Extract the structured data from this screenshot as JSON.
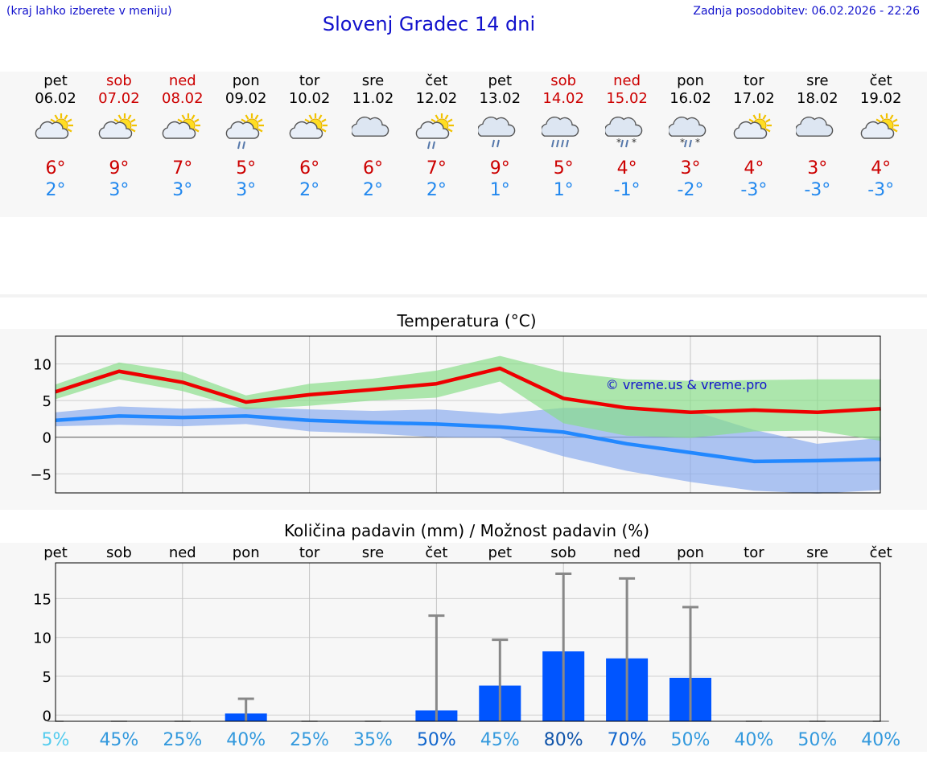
{
  "header": {
    "note": "(kraj lahko izberete v meniju)",
    "title": "Slovenj Gradec 14 dni",
    "updated": "Zadnja posodobitev: 06.02.2026 - 22:26"
  },
  "forecast": [
    {
      "day": "pet",
      "date": "06.02",
      "icon": "sun-cloud-icon",
      "max": "6°",
      "min": "2°",
      "weekend": false
    },
    {
      "day": "sob",
      "date": "07.02",
      "icon": "sun-cloud-icon",
      "max": "9°",
      "min": "3°",
      "weekend": true
    },
    {
      "day": "ned",
      "date": "08.02",
      "icon": "sun-cloud-icon",
      "max": "7°",
      "min": "3°",
      "weekend": true
    },
    {
      "day": "pon",
      "date": "09.02",
      "icon": "sun-cloud-rain-icon",
      "max": "5°",
      "min": "3°",
      "weekend": false
    },
    {
      "day": "tor",
      "date": "10.02",
      "icon": "sun-cloud-icon",
      "max": "6°",
      "min": "2°",
      "weekend": false
    },
    {
      "day": "sre",
      "date": "11.02",
      "icon": "cloud-icon",
      "max": "6°",
      "min": "2°",
      "weekend": false
    },
    {
      "day": "čet",
      "date": "12.02",
      "icon": "sun-cloud-rain-icon",
      "max": "7°",
      "min": "2°",
      "weekend": false
    },
    {
      "day": "pet",
      "date": "13.02",
      "icon": "cloud-rain-icon",
      "max": "9°",
      "min": "1°",
      "weekend": false
    },
    {
      "day": "sob",
      "date": "14.02",
      "icon": "cloud-heavy-rain-icon",
      "max": "5°",
      "min": "1°",
      "weekend": true
    },
    {
      "day": "ned",
      "date": "15.02",
      "icon": "cloud-sleet-icon",
      "max": "4°",
      "min": "-1°",
      "weekend": true
    },
    {
      "day": "pon",
      "date": "16.02",
      "icon": "cloud-sleet-icon",
      "max": "3°",
      "min": "-2°",
      "weekend": false
    },
    {
      "day": "tor",
      "date": "17.02",
      "icon": "sun-cloud-icon",
      "max": "4°",
      "min": "-3°",
      "weekend": false
    },
    {
      "day": "sre",
      "date": "18.02",
      "icon": "cloud-icon",
      "max": "3°",
      "min": "-3°",
      "weekend": false
    },
    {
      "day": "čet",
      "date": "19.02",
      "icon": "sun-cloud-icon",
      "max": "4°",
      "min": "-3°",
      "weekend": false
    }
  ],
  "colors": {
    "max_line": "#ee0000",
    "max_band": "#88dd88",
    "min_line": "#2288ff",
    "min_band": "#88aaee",
    "bar": "#0055ff",
    "whisker": "#888888",
    "title": "#1111cc"
  },
  "chart_data": [
    {
      "type": "line",
      "title": "Temperatura (°C)",
      "x": [
        "06.02",
        "07.02",
        "08.02",
        "09.02",
        "10.02",
        "11.02",
        "12.02",
        "13.02",
        "14.02",
        "15.02",
        "16.02",
        "17.02",
        "18.02",
        "19.02"
      ],
      "yticks": [
        10,
        5,
        0,
        -5
      ],
      "ytick_labels": [
        "10",
        "5",
        "0",
        "−5"
      ],
      "ylim": [
        -7.6,
        13.8
      ],
      "watermark": "© vreme.us & vreme.pro",
      "series": [
        {
          "name": "max",
          "values": [
            6.2,
            9.0,
            7.5,
            4.8,
            5.8,
            6.5,
            7.3,
            9.4,
            5.3,
            4.0,
            3.4,
            3.7,
            3.4,
            3.9
          ],
          "band_high": [
            7.2,
            10.2,
            8.9,
            5.7,
            7.3,
            8.0,
            9.1,
            11.1,
            8.9,
            7.9,
            7.7,
            7.8,
            7.9,
            7.9
          ],
          "band_low": [
            5.2,
            7.9,
            6.3,
            3.8,
            4.3,
            5.0,
            5.4,
            7.6,
            1.9,
            0.2,
            -0.1,
            0.8,
            0.9,
            -0.5
          ]
        },
        {
          "name": "min",
          "values": [
            2.3,
            2.9,
            2.7,
            2.9,
            2.3,
            2.0,
            1.8,
            1.4,
            0.7,
            -0.9,
            -2.1,
            -3.3,
            -3.2,
            -3.0
          ],
          "band_high": [
            3.4,
            4.2,
            3.9,
            4.1,
            3.8,
            3.6,
            3.8,
            3.2,
            4.0,
            4.0,
            3.7,
            1.0,
            -0.9,
            -0.1
          ],
          "band_low": [
            1.5,
            1.7,
            1.5,
            1.8,
            0.8,
            0.5,
            0.0,
            -0.1,
            -2.6,
            -4.6,
            -6.1,
            -7.3,
            -7.7,
            -7.2
          ]
        }
      ]
    },
    {
      "type": "bar",
      "title": "Količina padavin (mm) / Možnost padavin (%)",
      "categories": [
        "pet",
        "sob",
        "ned",
        "pon",
        "tor",
        "sre",
        "čet",
        "pet",
        "sob",
        "ned",
        "pon",
        "tor",
        "sre",
        "čet"
      ],
      "values": [
        0.0,
        0.0,
        0.0,
        0.2,
        0.0,
        0.0,
        0.6,
        3.8,
        8.2,
        7.3,
        4.8,
        0.0,
        0.0,
        0.0
      ],
      "error_high": [
        0.0,
        0.0,
        0.0,
        2.1,
        0.0,
        0.0,
        12.8,
        9.7,
        18.2,
        17.6,
        13.9,
        0.0,
        0.0,
        0.0
      ],
      "yticks": [
        15,
        10,
        5,
        0
      ],
      "ylim": [
        -0.8,
        19.6
      ],
      "probabilities": [
        "5%",
        "45%",
        "25%",
        "40%",
        "25%",
        "35%",
        "50%",
        "45%",
        "80%",
        "70%",
        "50%",
        "40%",
        "50%",
        "40%"
      ],
      "probability_colors": [
        "#55ccee",
        "#3399dd",
        "#3399dd",
        "#3399dd",
        "#3399dd",
        "#3399dd",
        "#1166cc",
        "#3399dd",
        "#1155aa",
        "#1166cc",
        "#3399dd",
        "#3399dd",
        "#3399dd",
        "#3399dd"
      ]
    }
  ]
}
